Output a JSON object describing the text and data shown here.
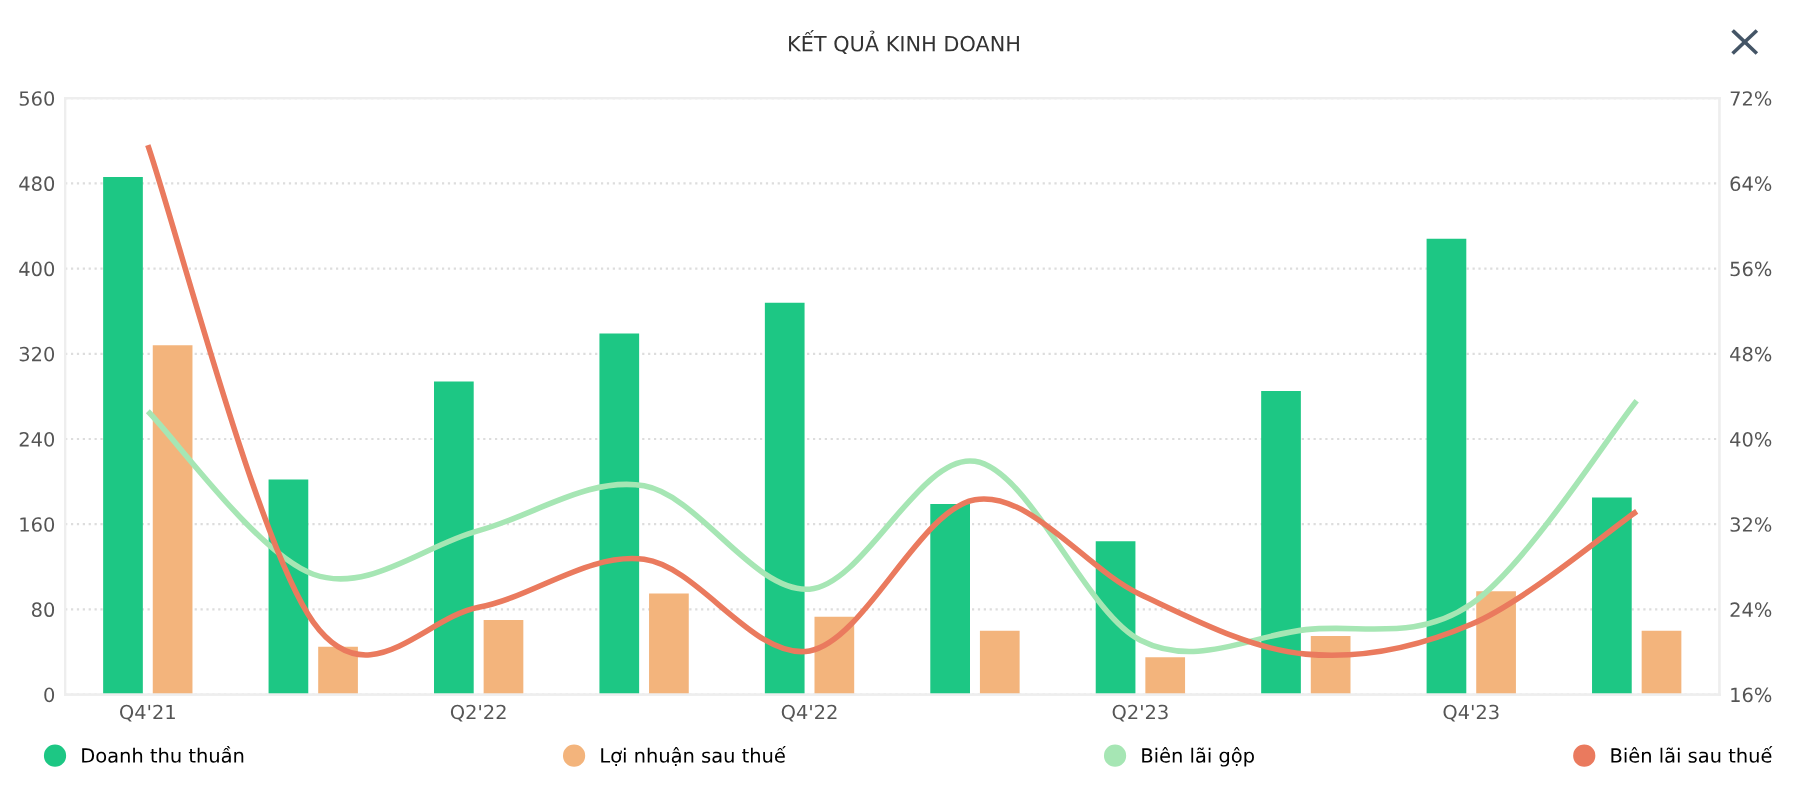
{
  "chart_data": {
    "type": "bar",
    "title": "KẾT QUẢ KINH DOANH",
    "categories": [
      "Q4'21",
      null,
      "Q2'22",
      null,
      "Q4'22",
      null,
      "Q2'23",
      null,
      "Q4'23",
      null
    ],
    "series": [
      {
        "name": "Doanh thu thuần",
        "color": "#1dc784",
        "values": [
          486,
          202,
          294,
          339,
          368,
          179,
          144,
          285,
          428,
          185
        ]
      },
      {
        "name": "Lợi nhuận sau thuế",
        "color": "#f3b47c",
        "values": [
          328,
          45,
          70,
          95,
          73,
          60,
          35,
          55,
          97,
          60
        ]
      },
      {
        "name": "Biên lãi gộp",
        "type": "line",
        "axis": "y2",
        "color": "#a6e6b4",
        "values": [
          42.6,
          27.3,
          31.4,
          35.6,
          25.9,
          37.9,
          21.1,
          22.1,
          24.5,
          43.6
        ]
      },
      {
        "name": "Biên lãi sau thuế",
        "type": "line",
        "axis": "y2",
        "color": "#ea7a5e",
        "values": [
          67.6,
          22.8,
          24.2,
          28.7,
          20.1,
          34.3,
          25.4,
          19.8,
          22.6,
          33.2
        ]
      }
    ],
    "ylim": [
      0,
      560
    ],
    "yticks": [
      0,
      80,
      160,
      240,
      320,
      400,
      480,
      560
    ],
    "y2lim": [
      16,
      72
    ],
    "y2ticks": [
      {
        "value": 16,
        "label": "16%"
      },
      {
        "value": 24,
        "label": "24%"
      },
      {
        "value": 32,
        "label": "32%"
      },
      {
        "value": 40,
        "label": "40%"
      },
      {
        "value": 48,
        "label": "48%"
      },
      {
        "value": 56,
        "label": "56%"
      },
      {
        "value": 64,
        "label": "64%"
      },
      {
        "value": 72,
        "label": "72%"
      }
    ],
    "grid": "y",
    "legend": "bottom",
    "marker": "none",
    "line_style": "solid"
  }
}
